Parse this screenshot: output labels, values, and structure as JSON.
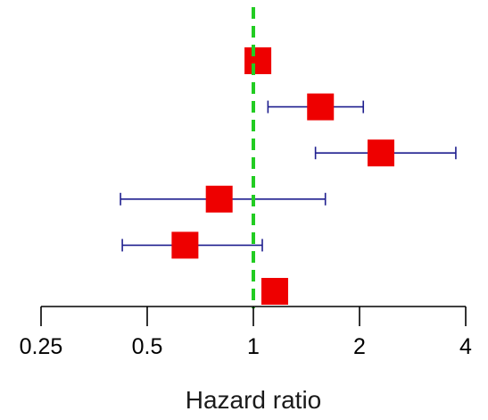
{
  "chart_data": {
    "type": "forest",
    "xlabel": "Hazard ratio",
    "x_scale": "log2",
    "xlim": [
      0.25,
      4
    ],
    "x_ticks": [
      0.25,
      0.5,
      1,
      2,
      4
    ],
    "x_tick_labels": [
      "0.25",
      "0.5",
      "1",
      "2",
      "4"
    ],
    "reference_line": 1,
    "grid": false,
    "rows": [
      {
        "hr": 1.03,
        "lower": null,
        "upper": null
      },
      {
        "hr": 1.55,
        "lower": 1.1,
        "upper": 2.05
      },
      {
        "hr": 2.3,
        "lower": 1.5,
        "upper": 3.75
      },
      {
        "hr": 0.8,
        "lower": 0.42,
        "upper": 1.6
      },
      {
        "hr": 0.64,
        "lower": 0.425,
        "upper": 1.06
      },
      {
        "hr": 1.15,
        "lower": null,
        "upper": null
      }
    ],
    "colors": {
      "point": "#ee0000",
      "ci": "#1f1f8f",
      "reference": "#22cc22",
      "axis": "#000000"
    }
  }
}
